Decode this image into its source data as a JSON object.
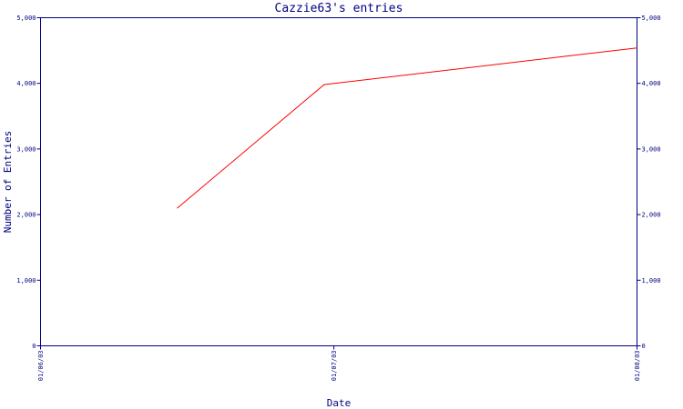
{
  "chart_data": {
    "type": "line",
    "title": "Cazzie63's entries",
    "xlabel": "Date",
    "ylabel": "Number of Entries",
    "x_ticks": [
      "01/06/03",
      "01/07/03",
      "01/08/03"
    ],
    "y_ticks": [
      "0",
      "1,000",
      "2,000",
      "3,000",
      "4,000",
      "5,000"
    ],
    "ylim": [
      0,
      5000
    ],
    "xlim": [
      "2003-06-01",
      "2003-08-01"
    ],
    "grid": false,
    "series": [
      {
        "color": "#ff0000",
        "points": [
          {
            "x": "2003-06-15",
            "y": 2100
          },
          {
            "x": "2003-06-30",
            "y": 3980
          },
          {
            "x": "2003-08-01",
            "y": 4540
          }
        ]
      }
    ],
    "colors": {
      "axis": "#000080",
      "text": "#000080",
      "background": "#ffffff"
    }
  }
}
